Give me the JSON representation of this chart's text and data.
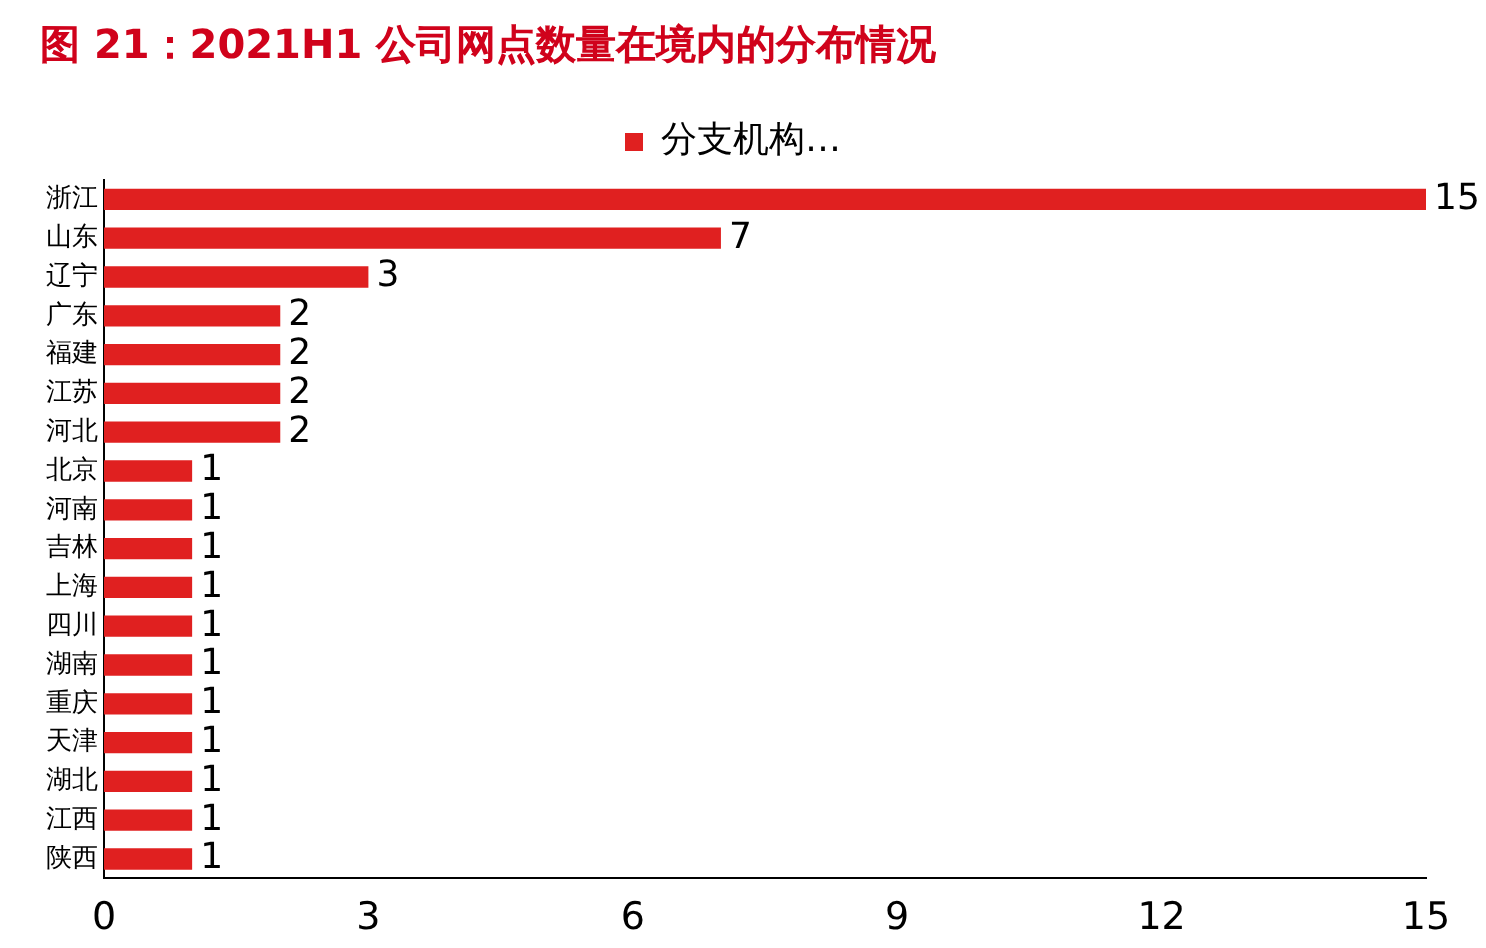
{
  "chart_data": {
    "type": "bar",
    "orientation": "horizontal",
    "title": "图 21：2021H1 公司网点数量在境内的分布情况",
    "categories": [
      "浙江",
      "山东",
      "辽宁",
      "广东",
      "福建",
      "江苏",
      "河北",
      "北京",
      "河南",
      "吉林",
      "上海",
      "四川",
      "湖南",
      "重庆",
      "天津",
      "湖北",
      "江西",
      "陕西"
    ],
    "series": [
      {
        "name": "分支机构…",
        "color": "#e02020",
        "values": [
          15,
          7,
          3,
          2,
          2,
          2,
          2,
          1,
          1,
          1,
          1,
          1,
          1,
          1,
          1,
          1,
          1,
          1
        ]
      }
    ],
    "xlim": [
      0,
      15
    ],
    "xticks": [
      0,
      3,
      6,
      9,
      12,
      15
    ],
    "data_labels": true,
    "legend": "top",
    "grid": false
  }
}
